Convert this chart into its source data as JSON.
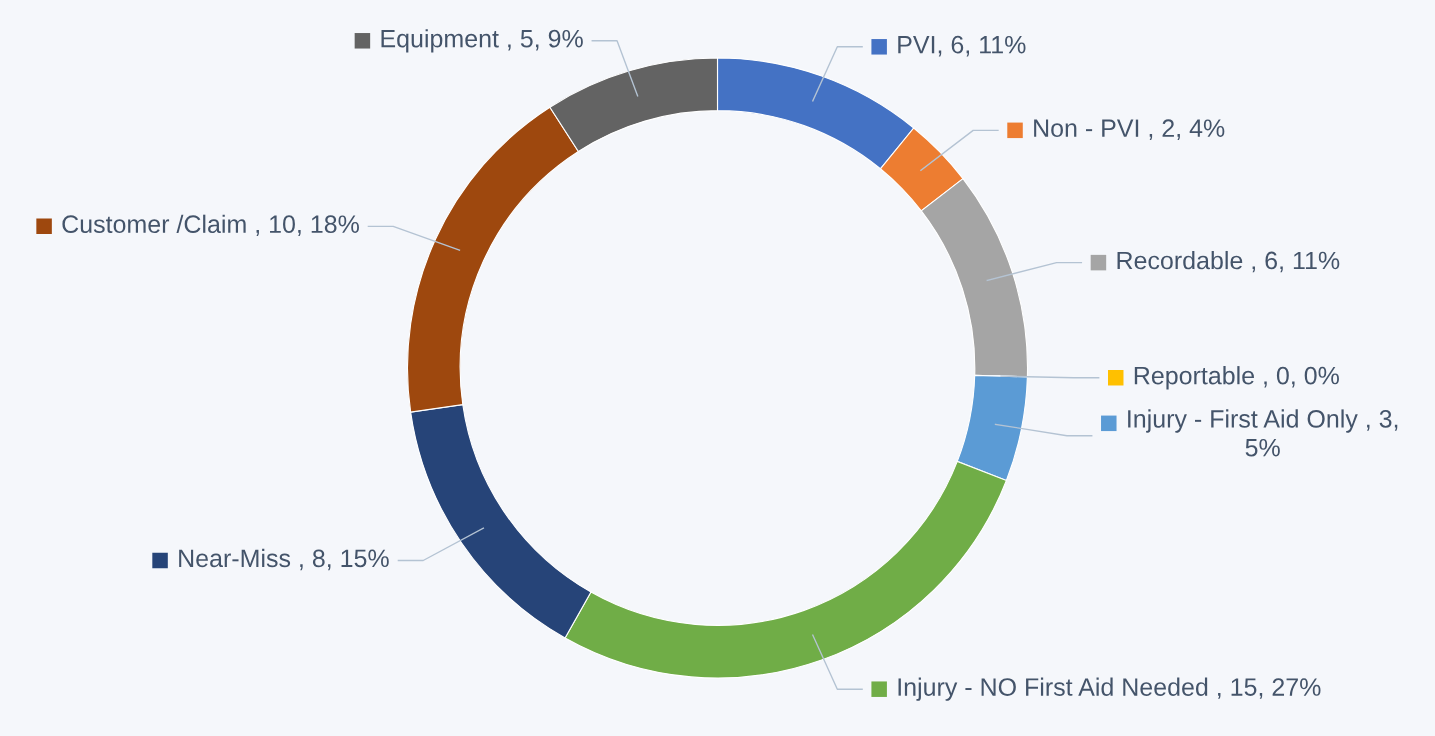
{
  "chart_data": {
    "type": "donut",
    "categories": [
      "PVI",
      "Non - PVI ",
      "Recordable ",
      "Reportable ",
      "Injury - First Aid Only ",
      "Injury - NO First Aid Needed ",
      "Near-Miss ",
      "Customer /Claim ",
      "Equipment "
    ],
    "values": [
      6,
      2,
      6,
      0,
      3,
      15,
      8,
      10,
      5
    ],
    "value_labels": [
      "6, 11%",
      "2, 4%",
      "6, 11%",
      "0, 0%",
      "3, 5%",
      "15, 27%",
      "8, 15%",
      "10, 18%",
      "5, 9%"
    ],
    "colors": [
      "#4472c4",
      "#ed7d31",
      "#a5a5a5",
      "#ffc000",
      "#5b9bd5",
      "#70ad47",
      "#264478",
      "#9e480e",
      "#636363"
    ],
    "legend": "right"
  }
}
